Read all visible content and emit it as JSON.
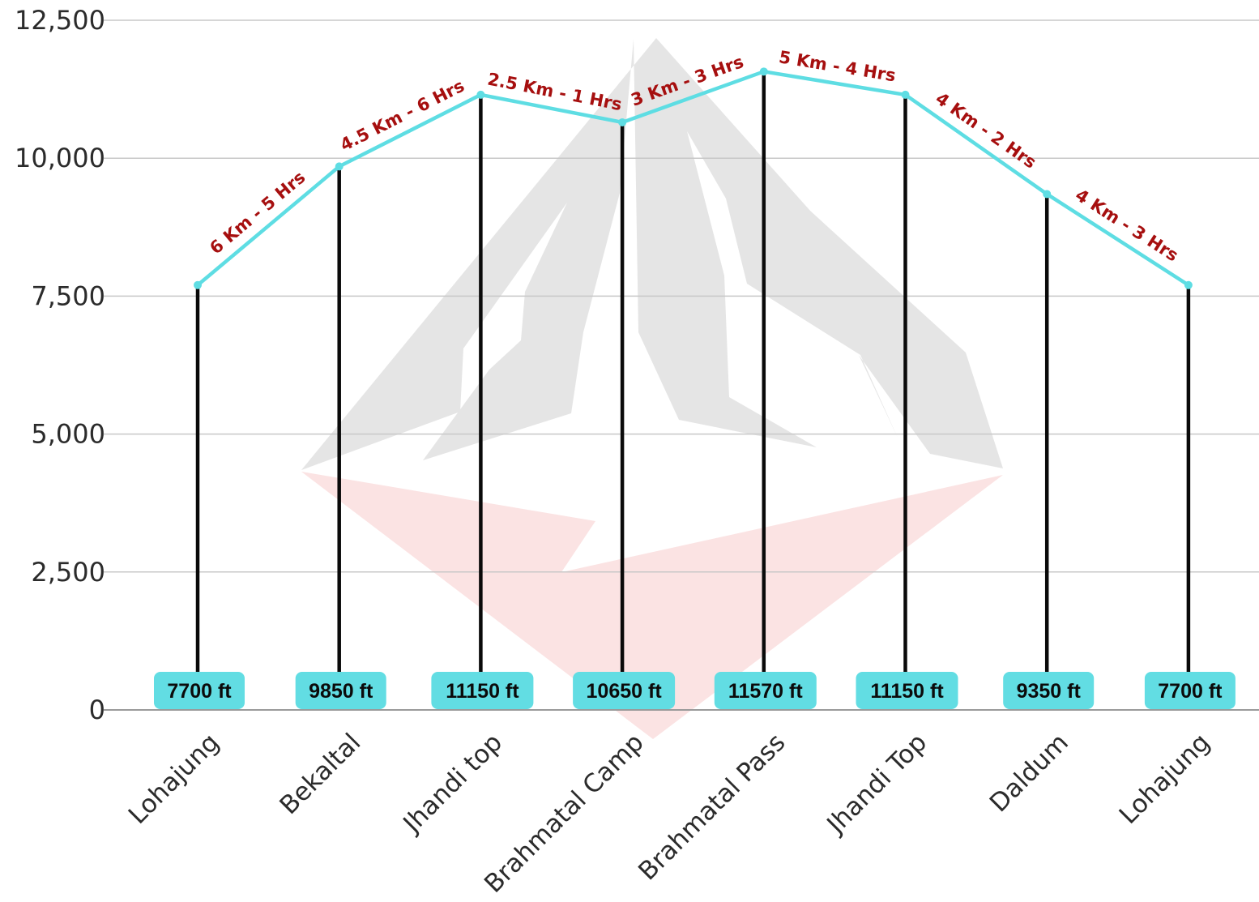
{
  "chart_data": {
    "type": "line",
    "title": "",
    "xlabel": "",
    "ylabel": "",
    "ylim": [
      0,
      12500
    ],
    "yticks": [
      0,
      2500,
      5000,
      7500,
      10000,
      12500
    ],
    "ytick_labels": [
      "0",
      "2,500",
      "5,000",
      "7,500",
      "10,000",
      "12,500"
    ],
    "grid": true,
    "categories": [
      "Lohajung",
      "Bekaltal",
      "Jhandi top",
      "Brahmatal Camp",
      "Brahmatal Pass",
      "Jhandi Top",
      "Daldum",
      "Lohajung"
    ],
    "values": [
      7700,
      9850,
      11150,
      10650,
      11570,
      11150,
      9350,
      7700
    ],
    "value_labels": [
      "7700 ft",
      "9850 ft",
      "11150 ft",
      "10650 ft",
      "11570 ft",
      "11150 ft",
      "9350 ft",
      "7700 ft"
    ],
    "segment_labels": [
      "6 Km - 5 Hrs",
      "4.5 Km - 6 Hrs",
      "2.5 Km - 1 Hrs",
      "3 Km - 3 Hrs",
      "5 Km - 4 Hrs",
      "4 Km - 2 Hrs",
      "4 Km - 3 Hrs"
    ],
    "colors": {
      "line": "#5edde3",
      "badge": "#62dde3",
      "stem": "#0a0a0a",
      "segment_label": "#a60f0f",
      "grid": "#c8c8c8",
      "watermark_mountain": "#e5e5e5",
      "watermark_base": "#fbe3e3"
    }
  }
}
